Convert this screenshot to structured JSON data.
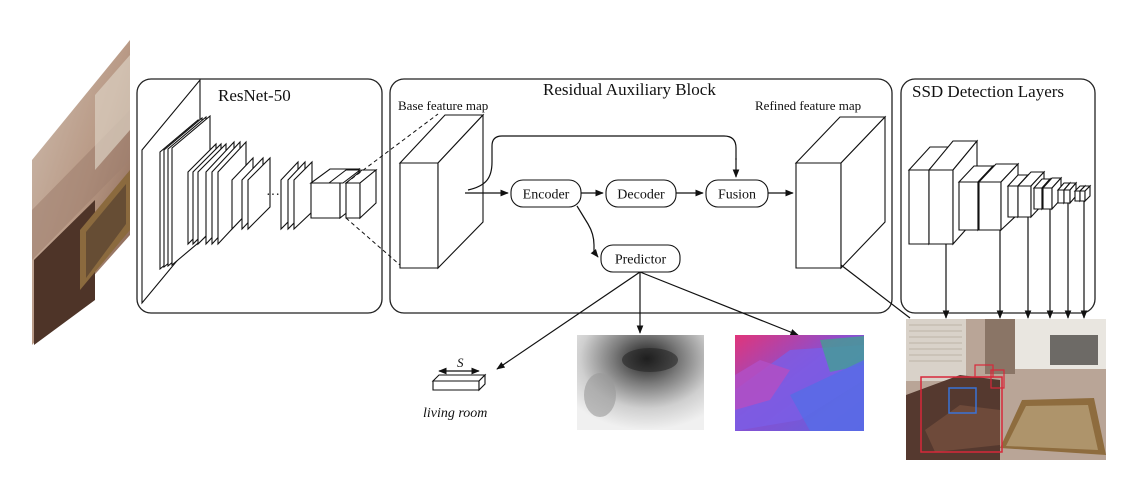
{
  "panels": {
    "resnet": "ResNet-50",
    "rab": "Residual Auxiliary Block",
    "ssd": "SSD Detection Layers"
  },
  "labels": {
    "base_feature_map": "Base feature map",
    "refined_feature_map": "Refined feature map",
    "scene_scale": "S",
    "scene_class": "living room"
  },
  "nodes": {
    "encoder": "Encoder",
    "decoder": "Decoder",
    "fusion": "Fusion",
    "predictor": "Predictor"
  },
  "colors": {
    "stroke": "#111111",
    "detection_box_red": "#d8283a",
    "detection_box_blue": "#3a73d6",
    "normals_purple": "#6a5ad8",
    "normals_pink": "#e0357a"
  }
}
